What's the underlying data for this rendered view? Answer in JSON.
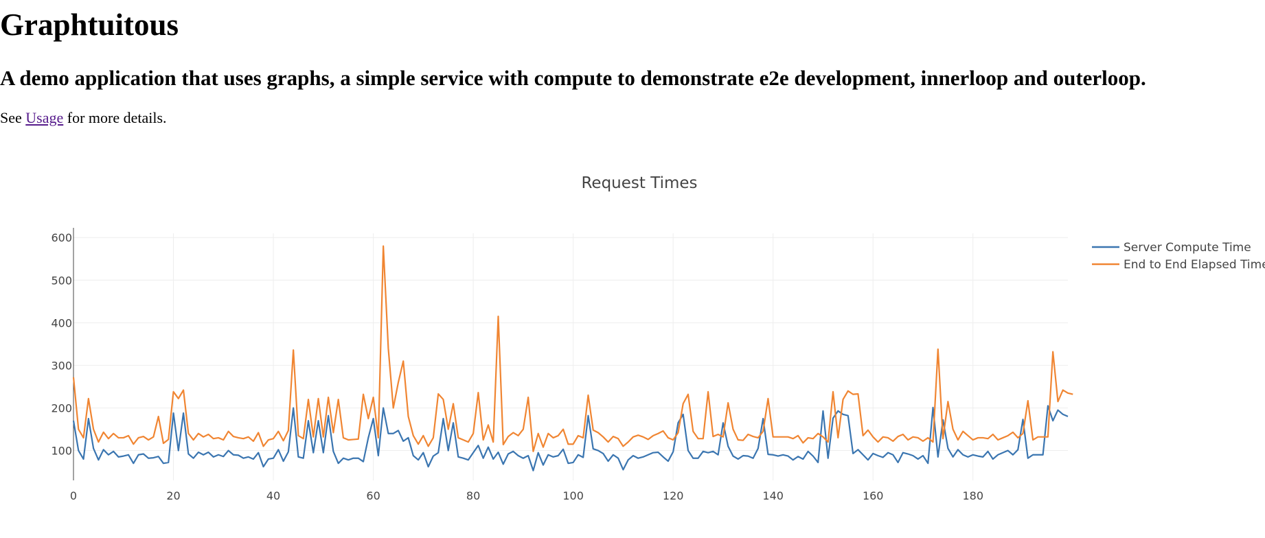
{
  "page": {
    "title": "Graphtuitous",
    "subtitle": "A demo application that uses graphs, a simple service with compute to demonstrate e2e development, innerloop and outerloop.",
    "see_prefix": "See ",
    "usage_link": "Usage",
    "see_suffix": " for more details."
  },
  "colors": {
    "link": "#551a8b",
    "series_1": "#3a75b0",
    "series_2": "#f08532",
    "grid": "#eeeeee",
    "text": "#444444"
  },
  "chart_data": {
    "type": "line",
    "title": "Request Times",
    "xlim": [
      0,
      199
    ],
    "ylim": [
      30,
      610
    ],
    "xticks": [
      0,
      20,
      40,
      60,
      80,
      100,
      120,
      140,
      160,
      180
    ],
    "yticks": [
      100,
      200,
      300,
      400,
      500,
      600
    ],
    "grid": true,
    "legend_position": "top-right",
    "series": [
      {
        "name": "Server Compute Time",
        "color": "#3a75b0",
        "values": [
          170,
          100,
          80,
          175,
          105,
          78,
          102,
          90,
          98,
          85,
          87,
          90,
          70,
          90,
          92,
          82,
          83,
          86,
          70,
          72,
          188,
          100,
          188,
          92,
          82,
          96,
          90,
          96,
          85,
          90,
          86,
          100,
          90,
          89,
          82,
          85,
          80,
          95,
          62,
          80,
          82,
          102,
          75,
          97,
          200,
          85,
          82,
          170,
          95,
          170,
          95,
          182,
          98,
          70,
          82,
          78,
          82,
          82,
          74,
          130,
          175,
          88,
          200,
          140,
          140,
          147,
          122,
          130,
          88,
          78,
          95,
          62,
          87,
          95,
          175,
          100,
          165,
          85,
          82,
          78,
          95,
          112,
          82,
          108,
          80,
          96,
          68,
          92,
          98,
          88,
          82,
          88,
          53,
          95,
          66,
          90,
          85,
          88,
          103,
          70,
          72,
          90,
          84,
          182,
          104,
          100,
          93,
          75,
          90,
          82,
          55,
          78,
          88,
          82,
          85,
          90,
          95,
          96,
          85,
          75,
          97,
          165,
          185,
          100,
          82,
          82,
          98,
          95,
          98,
          90,
          165,
          110,
          87,
          80,
          88,
          87,
          82,
          105,
          175,
          91,
          90,
          87,
          90,
          87,
          78,
          86,
          80,
          98,
          87,
          72,
          193,
          82,
          176,
          193,
          185,
          182,
          93,
          102,
          90,
          78,
          93,
          88,
          84,
          95,
          90,
          72,
          95,
          92,
          88,
          80,
          88,
          70,
          201,
          85,
          172,
          105,
          85,
          102,
          90,
          85,
          90,
          87,
          85,
          98,
          80,
          90,
          95,
          100,
          90,
          102,
          173,
          82,
          90,
          90,
          90,
          205,
          170,
          195,
          185,
          180
        ]
      },
      {
        "name": "End to End Elapsed Time",
        "color": "#f08532",
        "values": [
          272,
          150,
          130,
          222,
          150,
          120,
          143,
          128,
          140,
          130,
          130,
          135,
          115,
          130,
          133,
          125,
          132,
          180,
          117,
          126,
          238,
          222,
          242,
          140,
          125,
          140,
          132,
          138,
          128,
          130,
          125,
          145,
          133,
          130,
          128,
          132,
          122,
          142,
          110,
          125,
          128,
          145,
          123,
          147,
          336,
          135,
          128,
          220,
          132,
          222,
          132,
          225,
          142,
          220,
          130,
          125,
          126,
          127,
          232,
          175,
          225,
          130,
          580,
          340,
          200,
          260,
          310,
          180,
          135,
          115,
          135,
          110,
          130,
          233,
          220,
          150,
          210,
          130,
          125,
          120,
          140,
          236,
          125,
          160,
          120,
          415,
          114,
          133,
          142,
          135,
          150,
          225,
          98,
          140,
          108,
          140,
          130,
          135,
          150,
          115,
          115,
          135,
          130,
          230,
          148,
          142,
          132,
          120,
          133,
          128,
          110,
          120,
          132,
          136,
          132,
          126,
          135,
          140,
          146,
          130,
          125,
          142,
          210,
          232,
          145,
          128,
          128,
          238,
          133,
          138,
          132,
          212,
          150,
          125,
          124,
          138,
          133,
          130,
          145,
          222,
          132,
          132,
          132,
          132,
          128,
          135,
          118,
          130,
          128,
          140,
          132,
          120,
          238,
          130,
          220,
          240,
          232,
          233,
          135,
          148,
          132,
          120,
          132,
          130,
          122,
          133,
          138,
          125,
          132,
          130,
          122,
          130,
          120,
          338,
          128,
          215,
          150,
          125,
          145,
          135,
          125,
          130,
          130,
          128,
          138,
          125,
          130,
          135,
          143,
          130,
          140,
          217,
          125,
          132,
          132,
          132,
          332,
          215,
          242,
          235,
          232
        ]
      }
    ]
  }
}
